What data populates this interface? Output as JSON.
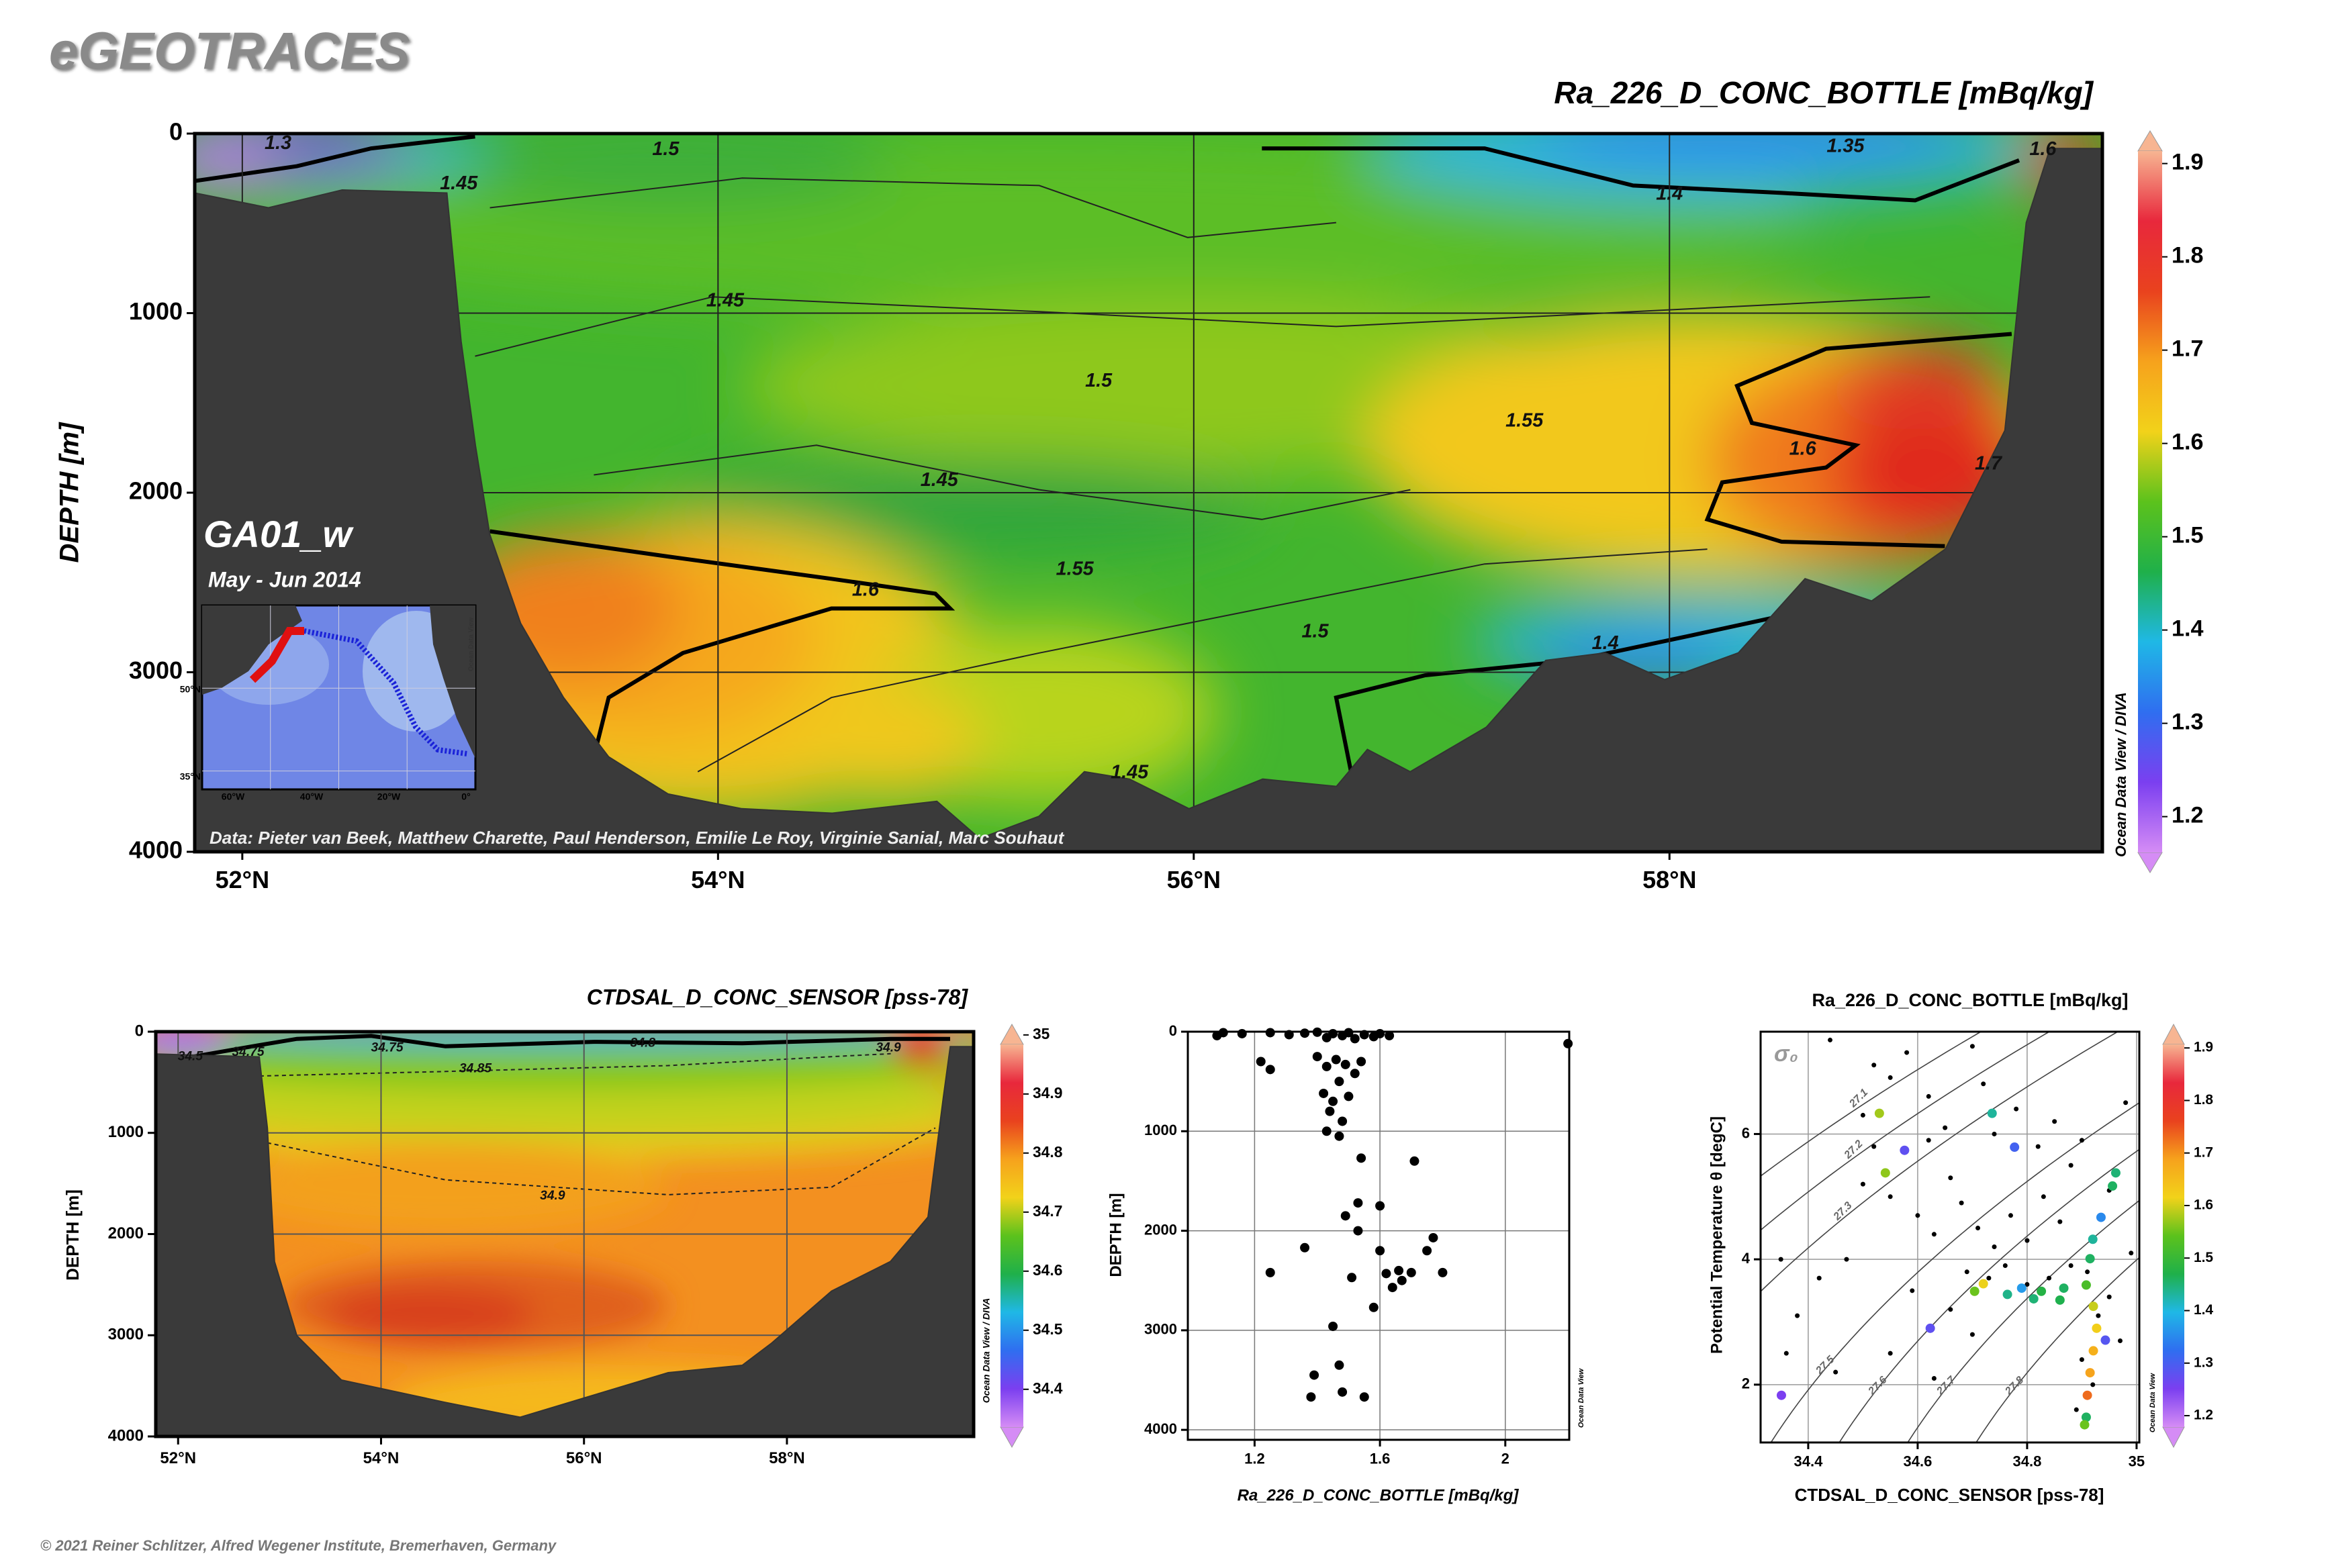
{
  "header": {
    "logo": "eGEOTRACES"
  },
  "footer": {
    "copyright": "© 2021 Reiner Schlitzer, Alfred Wegener Institute, Bremerhaven, Germany"
  },
  "chart_data": [
    {
      "type": "section",
      "title": "Ra_226_D_CONC_BOTTLE [mBq/kg]",
      "ylabel": "DEPTH [m]",
      "xlim": [
        51.8,
        59.82
      ],
      "xticks": [
        {
          "value": 52,
          "label": "52°N"
        },
        {
          "value": 54,
          "label": "54°N"
        },
        {
          "value": 56,
          "label": "56°N"
        },
        {
          "value": 58,
          "label": "58°N"
        }
      ],
      "ylim": [
        0,
        4000
      ],
      "yticks": [
        0,
        1000,
        2000,
        3000,
        4000
      ],
      "y_inverted": true,
      "grid": true,
      "bathymetry": {
        "lat": [
          51.8,
          52.11,
          52.42,
          52.86,
          52.92,
          52.98,
          53.04,
          53.17,
          53.35,
          53.54,
          53.79,
          54.1,
          54.48,
          54.92,
          55.1,
          55.35,
          55.54,
          55.73,
          55.98,
          56.29,
          56.6,
          56.73,
          56.91,
          57.23,
          57.48,
          57.73,
          57.98,
          58.29,
          58.57,
          58.85,
          59.16,
          59.41,
          59.5,
          59.6,
          59.82
        ],
        "depth": [
          331,
          413,
          314,
          331,
          1157,
          1736,
          2231,
          2727,
          3140,
          3471,
          3678,
          3760,
          3785,
          3719,
          3926,
          3802,
          3554,
          3595,
          3760,
          3595,
          3636,
          3430,
          3554,
          3306,
          2934,
          2892,
          3041,
          2892,
          2479,
          2603,
          2314,
          1653,
          496,
          83,
          83
        ]
      },
      "contour_labels": {
        "values": [
          1.3,
          1.5,
          1.45,
          1.35,
          1.6,
          1.4,
          1.45,
          1.5,
          1.55,
          1.6,
          1.7,
          1.45,
          1.55,
          1.6,
          1.5,
          1.4,
          1.45
        ],
        "lat": [
          52.15,
          53.78,
          52.91,
          58.74,
          59.57,
          58.0,
          54.03,
          55.6,
          57.39,
          58.56,
          59.34,
          54.93,
          55.5,
          54.62,
          56.51,
          57.73,
          55.73
        ],
        "depth": [
          58,
          91,
          281,
          74,
          91,
          339,
          934,
          1380,
          1603,
          1760,
          1843,
          1934,
          2430,
          2545,
          2777,
          2843,
          3562
        ]
      },
      "colorbar": {
        "lim": [
          1.14,
          1.935
        ],
        "ticks": [
          1.2,
          1.3,
          1.4,
          1.5,
          1.6,
          1.7,
          1.8,
          1.9
        ],
        "colors": [
          "#d58cf5",
          "#7b3ff0",
          "#2f6ef0",
          "#1fb8e6",
          "#1fb04a",
          "#5cc21c",
          "#f2d21a",
          "#f6a21c",
          "#e9421e",
          "#e8283c",
          "#f7b592"
        ]
      },
      "watermark": "Ocean Data View / DIVA",
      "cruise": "GA01_w",
      "period": "May - Jun 2014",
      "credit": "Data: Pieter van Beek, Matthew Charette, Paul Henderson, Emilie Le Roy, Virginie Sanial, Marc Souhaut",
      "inset": {
        "lat_labels": [
          "50°N",
          "35°N"
        ],
        "lon_labels": [
          "60°W",
          "40°W",
          "20°W",
          "0°"
        ],
        "watermark": "Ocean Data View"
      }
    },
    {
      "type": "section",
      "title": "CTDSAL_D_CONC_SENSOR [pss-78]",
      "ylabel": "DEPTH [m]",
      "xlim": [
        51.78,
        59.84
      ],
      "xticks": [
        {
          "value": 52,
          "label": "52°N"
        },
        {
          "value": 54,
          "label": "54°N"
        },
        {
          "value": 56,
          "label": "56°N"
        },
        {
          "value": 58,
          "label": "58°N"
        }
      ],
      "ylim": [
        0,
        4000
      ],
      "yticks": [
        0,
        1000,
        2000,
        3000,
        4000
      ],
      "y_inverted": true,
      "grid": true,
      "bathymetry": {
        "lat": [
          51.78,
          52.8,
          52.88,
          52.95,
          53.17,
          53.61,
          54.63,
          55.37,
          56.1,
          56.83,
          57.56,
          57.85,
          58.44,
          59.02,
          59.39,
          59.54,
          59.61,
          59.84
        ],
        "depth": [
          220,
          249,
          952,
          2271,
          3004,
          3443,
          3663,
          3810,
          3590,
          3370,
          3297,
          3077,
          2564,
          2271,
          1832,
          659,
          147,
          147
        ]
      },
      "contour_labels": {
        "values": [
          34.5,
          34.75,
          34.75,
          34.85,
          34.9,
          34.8,
          34.9
        ],
        "lat": [
          52.12,
          52.69,
          54.06,
          54.93,
          55.69,
          56.58,
          59.0
        ],
        "depth": [
          249,
          205,
          161,
          366,
          1626,
          117,
          161
        ]
      },
      "colorbar": {
        "lim": [
          34.302,
          35.018
        ],
        "ticks": [
          34.4,
          34.5,
          34.6,
          34.7,
          34.8,
          34.9,
          35
        ],
        "colors": [
          "#d58cf5",
          "#7b3ff0",
          "#2f6ef0",
          "#1fb8e6",
          "#1fb04a",
          "#5cc21c",
          "#f2d21a",
          "#f6a21c",
          "#e9421e",
          "#e8283c",
          "#f7b592"
        ]
      },
      "watermark": "Ocean Data View / DIVA"
    },
    {
      "type": "scatter",
      "xlabel": "Ra_226_D_CONC_BOTTLE [mBq/kg]",
      "ylabel": "DEPTH [m]",
      "xlim": [
        0.987,
        2.204
      ],
      "xticks": [
        1.2,
        1.6,
        2
      ],
      "ylim": [
        0,
        4100
      ],
      "yticks": [
        0,
        1000,
        2000,
        3000,
        4000
      ],
      "y_inverted": true,
      "grid": true,
      "color": "#000000",
      "x": [
        1.08,
        1.1,
        1.16,
        1.25,
        1.31,
        1.36,
        1.4,
        1.43,
        1.45,
        1.48,
        1.5,
        1.52,
        1.55,
        1.58,
        1.6,
        1.63,
        2.2,
        1.22,
        1.25,
        1.4,
        1.43,
        1.46,
        1.49,
        1.52,
        1.54,
        1.47,
        1.42,
        1.45,
        1.5,
        1.44,
        1.48,
        1.43,
        1.47,
        1.54,
        1.71,
        1.53,
        1.6,
        1.49,
        1.53,
        1.36,
        1.77,
        1.6,
        1.75,
        1.25,
        1.51,
        1.66,
        1.62,
        1.7,
        1.8,
        1.67,
        1.64,
        1.58,
        1.45,
        1.39,
        1.47,
        1.38,
        1.48,
        1.55
      ],
      "values": [
        40,
        10,
        20,
        10,
        30,
        15,
        5,
        60,
        20,
        40,
        10,
        70,
        30,
        50,
        20,
        40,
        120,
        300,
        380,
        250,
        350,
        280,
        330,
        420,
        300,
        500,
        620,
        700,
        650,
        800,
        900,
        1000,
        1050,
        1270,
        1300,
        1720,
        1750,
        1850,
        2000,
        2170,
        2070,
        2200,
        2200,
        2420,
        2470,
        2400,
        2430,
        2420,
        2420,
        2500,
        2570,
        2770,
        2960,
        3450,
        3350,
        3670,
        3620,
        3670
      ],
      "watermark": "Ocean Data View"
    },
    {
      "type": "ts",
      "title": "Ra_226_D_CONC_BOTTLE [mBq/kg]",
      "xlabel": "CTDSAL_D_CONC_SENSOR [pss-78]",
      "ylabel": "Potential Temperature θ [degC]",
      "xlim": [
        34.313,
        35.005
      ],
      "xticks": [
        34.4,
        34.6,
        34.8,
        35
      ],
      "ylim": [
        1.077,
        7.633
      ],
      "yticks": [
        2,
        4,
        6
      ],
      "grid": true,
      "density_label": "σ₀",
      "isopycnals": [
        27.1,
        27.2,
        27.3,
        27.5,
        27.6,
        27.7,
        27.8
      ],
      "dots": {
        "color": "#000000",
        "x": [
          34.44,
          34.52,
          34.55,
          34.58,
          34.62,
          34.65,
          34.7,
          34.72,
          34.74,
          34.78,
          34.82,
          34.85,
          34.88,
          34.9,
          34.95,
          34.98,
          34.5,
          34.52,
          34.55,
          34.6,
          34.63,
          34.66,
          34.68,
          34.71,
          34.74,
          34.77,
          34.8,
          34.83,
          34.86,
          34.88,
          34.76,
          34.73,
          34.69,
          34.8,
          34.84,
          34.91,
          34.93,
          34.9,
          34.92,
          34.89,
          34.66,
          34.59,
          34.47,
          34.42,
          34.38,
          34.36,
          34.45,
          34.55,
          34.63,
          34.7,
          34.95,
          34.99,
          34.35,
          34.97,
          34.62,
          34.5
        ],
        "y": [
          7.5,
          7.1,
          6.9,
          7.3,
          6.6,
          6.1,
          7.4,
          6.8,
          6.0,
          6.4,
          5.8,
          6.2,
          5.5,
          5.9,
          5.1,
          6.5,
          5.2,
          5.8,
          5.0,
          4.7,
          4.4,
          5.3,
          4.9,
          4.5,
          4.2,
          4.7,
          4.3,
          5.0,
          4.6,
          3.9,
          3.9,
          3.7,
          3.8,
          3.6,
          3.7,
          3.8,
          3.1,
          2.4,
          2.0,
          1.6,
          3.2,
          3.5,
          4.0,
          3.7,
          3.1,
          2.5,
          2.2,
          2.5,
          2.1,
          2.8,
          3.4,
          4.1,
          4.0,
          2.7,
          5.9,
          6.3
        ]
      },
      "points": {
        "x": [
          34.53,
          34.576,
          34.541,
          34.736,
          34.777,
          34.956,
          34.962,
          34.935,
          34.92,
          34.915,
          34.72,
          34.704,
          34.764,
          34.79,
          34.826,
          34.867,
          34.908,
          34.921,
          34.927,
          34.921,
          34.915,
          34.91,
          34.908,
          34.905,
          34.351,
          34.623,
          34.943,
          34.812,
          34.86
        ],
        "y": [
          6.33,
          5.74,
          5.38,
          6.33,
          5.79,
          5.17,
          5.38,
          4.67,
          4.32,
          4.01,
          3.61,
          3.49,
          3.44,
          3.54,
          3.49,
          3.54,
          3.59,
          3.25,
          2.9,
          2.54,
          2.19,
          1.83,
          1.48,
          1.36,
          1.83,
          2.9,
          2.71,
          3.37,
          3.35
        ],
        "c": [
          1.58,
          1.25,
          1.57,
          1.42,
          1.28,
          1.45,
          1.44,
          1.33,
          1.42,
          1.45,
          1.62,
          1.55,
          1.43,
          1.35,
          1.47,
          1.45,
          1.52,
          1.6,
          1.63,
          1.68,
          1.7,
          1.75,
          1.45,
          1.55,
          1.22,
          1.25,
          1.26,
          1.44,
          1.46
        ]
      },
      "colorbar": {
        "lim": [
          1.14,
          1.945
        ],
        "ticks": [
          1.2,
          1.3,
          1.4,
          1.5,
          1.6,
          1.7,
          1.8,
          1.9
        ],
        "colors": [
          "#d58cf5",
          "#7b3ff0",
          "#2f6ef0",
          "#1fb8e6",
          "#1fb04a",
          "#5cc21c",
          "#f2d21a",
          "#f6a21c",
          "#e9421e",
          "#e8283c",
          "#f7b592"
        ]
      },
      "watermark": "Ocean Data View"
    }
  ]
}
